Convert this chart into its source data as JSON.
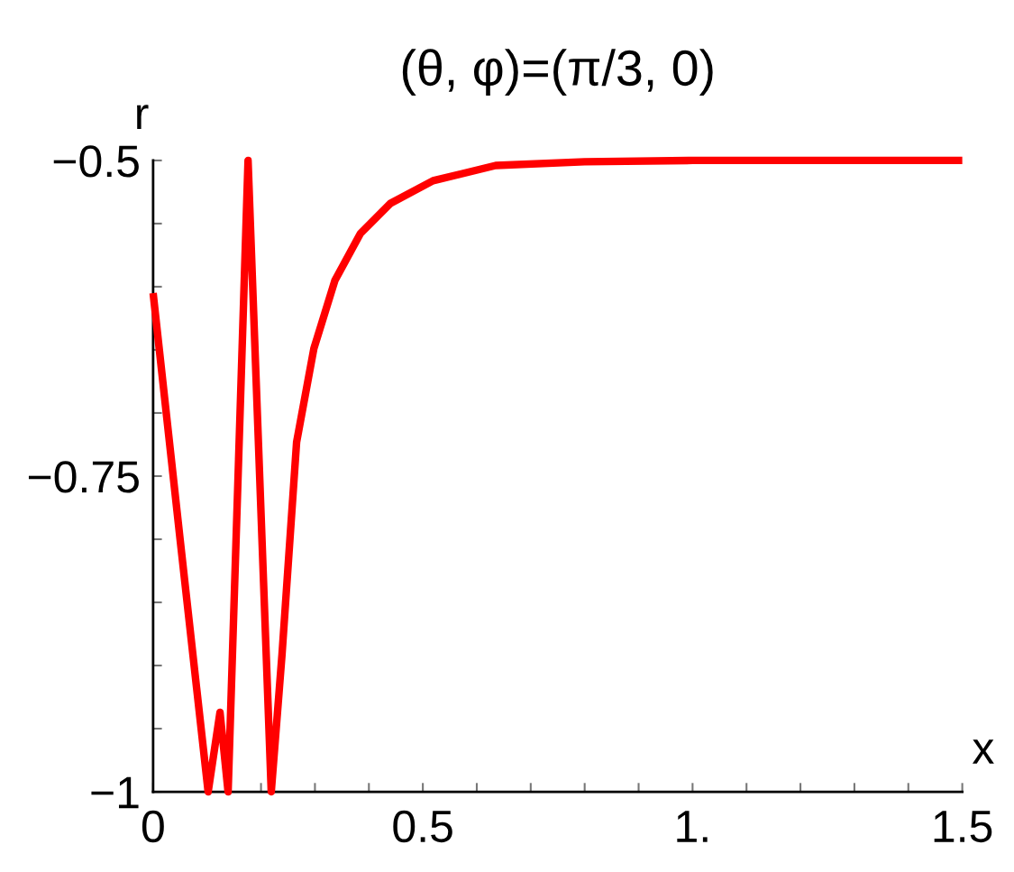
{
  "chart_data": {
    "type": "line",
    "title": "(θ, φ)=(π/3, 0)",
    "xlabel": "x",
    "ylabel": "r",
    "xlim": [
      0,
      1.5
    ],
    "ylim": [
      -1,
      -0.5
    ],
    "xticks": [
      0,
      {
        "value": 0.1,
        "label": null
      },
      {
        "value": 0.2,
        "label": null
      },
      {
        "value": 0.3,
        "label": null
      },
      {
        "value": 0.4,
        "label": null
      },
      {
        "value": 0.5,
        "label": "0.5"
      },
      {
        "value": 0.6,
        "label": null
      },
      {
        "value": 0.7,
        "label": null
      },
      {
        "value": 0.8,
        "label": null
      },
      {
        "value": 0.9,
        "label": null
      },
      {
        "value": 1,
        "label": "1."
      },
      {
        "value": 1.1,
        "label": null
      },
      {
        "value": 1.2,
        "label": null
      },
      {
        "value": 1.3,
        "label": null
      },
      {
        "value": 1.4,
        "label": null
      },
      {
        "value": 1.5,
        "label": "1.5"
      }
    ],
    "yticks": [
      {
        "value": -1,
        "label": "−1"
      },
      {
        "value": -0.95,
        "label": null
      },
      {
        "value": -0.9,
        "label": null
      },
      {
        "value": -0.85,
        "label": null
      },
      {
        "value": -0.8,
        "label": null
      },
      {
        "value": -0.75,
        "label": "−0.75"
      },
      {
        "value": -0.7,
        "label": null
      },
      {
        "value": -0.65,
        "label": null
      },
      {
        "value": -0.6,
        "label": null
      },
      {
        "value": -0.55,
        "label": null
      },
      {
        "value": -0.5,
        "label": "−0.5"
      }
    ],
    "grid": false,
    "legend": false,
    "series": [
      {
        "color": "#ff0000",
        "x": [
          0,
          0.05,
          0.102,
          0.124,
          0.139,
          0.176,
          0.219,
          0.239,
          0.266,
          0.298,
          0.337,
          0.384,
          0.44,
          0.519,
          0.635,
          0.8,
          1.0,
          1.5
        ],
        "values": [
          -0.605,
          -0.8,
          -1,
          -0.937,
          -1,
          -0.5,
          -1,
          -0.891,
          -0.723,
          -0.649,
          -0.595,
          -0.558,
          -0.534,
          -0.516,
          -0.504,
          -0.501,
          -0.5,
          -0.5
        ]
      }
    ]
  }
}
